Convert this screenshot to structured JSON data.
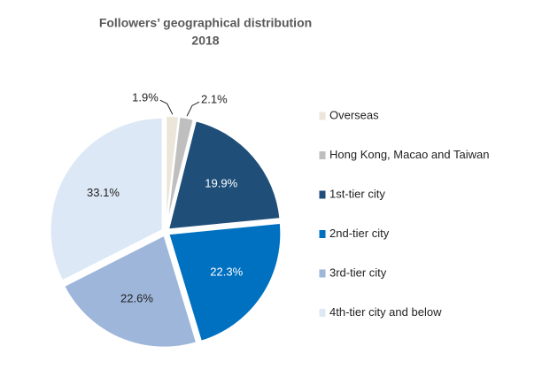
{
  "chart_data": {
    "type": "pie",
    "title": "Followers’ geographical distribution",
    "subtitle": "2018",
    "categories": [
      "Overseas",
      "Hong Kong, Macao and Taiwan",
      "1st-tier city",
      "2nd-tier city",
      "3rd-tier city",
      "4th-tier city and below"
    ],
    "values": [
      1.9,
      2.1,
      19.9,
      22.3,
      22.6,
      33.1
    ],
    "value_labels": [
      "1.9%",
      "2.1%",
      "19.9%",
      "22.3%",
      "22.6%",
      "33.1%"
    ],
    "colors": [
      "#ebe6d9",
      "#bfbfbf",
      "#1f4e79",
      "#0070c0",
      "#9db6da",
      "#dde8f6"
    ],
    "legend": "right"
  }
}
